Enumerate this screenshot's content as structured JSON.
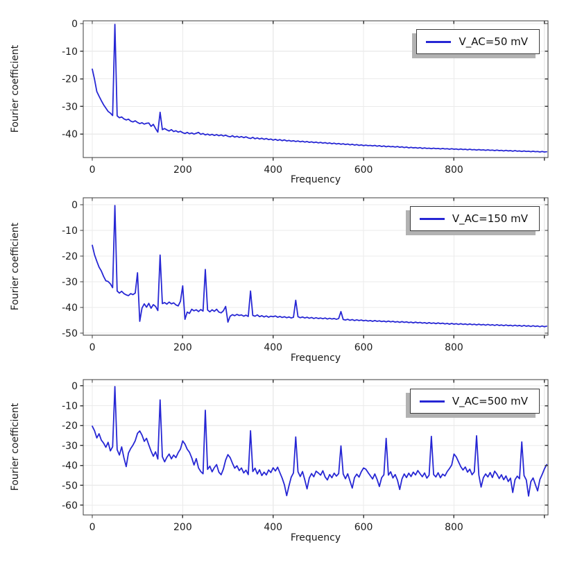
{
  "figure": {
    "background": "#ffffff",
    "grid_color": "#ebebeb",
    "frame_color": "#3b3b3b",
    "tick_color": "#3b3b3b",
    "text_color": "#1a1a1a",
    "legend_border_color": "#3a3a3a",
    "legend_shadow_color": "#b2b2b2",
    "accent_blue": "#2626d4"
  },
  "chart_data": [
    {
      "type": "line",
      "title": "",
      "xlabel": "Frequency",
      "ylabel": "Fourier coefficient",
      "grid": true,
      "legend_position": "top-right",
      "xlim": [
        -20,
        1008
      ],
      "ylim": [
        -48.5,
        1.0
      ],
      "xticks": [
        0,
        200,
        400,
        600,
        800,
        1000
      ],
      "xtick_labels": [
        "0",
        "200",
        "400",
        "600",
        "800",
        ""
      ],
      "yticks": [
        0,
        -10,
        -20,
        -30,
        -40
      ],
      "series": [
        {
          "name": "V_AC=50 mV",
          "color": "#2626d4",
          "x0": 0,
          "dx": 5,
          "y": [
            -16.5,
            -20.2,
            -24.6,
            -26.3,
            -27.9,
            -29.4,
            -30.6,
            -31.8,
            -32.4,
            -33.3,
            -0.3,
            -33.4,
            -34.1,
            -33.8,
            -34.5,
            -34.9,
            -34.6,
            -35.3,
            -35.6,
            -35.2,
            -35.8,
            -36.2,
            -35.9,
            -36.4,
            -36.1,
            -36.0,
            -37.2,
            -36.5,
            -38.0,
            -39.3,
            -32.1,
            -38.4,
            -38.0,
            -38.5,
            -38.9,
            -38.4,
            -39.1,
            -38.8,
            -39.3,
            -39.0,
            -39.5,
            -39.8,
            -39.4,
            -39.9,
            -39.6,
            -40.0,
            -39.7,
            -39.4,
            -40.1,
            -39.8,
            -40.3,
            -40.0,
            -40.4,
            -40.1,
            -40.5,
            -40.2,
            -40.6,
            -40.3,
            -40.7,
            -40.4,
            -40.8,
            -41.0,
            -40.6,
            -41.1,
            -40.8,
            -41.2,
            -40.9,
            -41.3,
            -41.0,
            -41.4,
            -41.6,
            -41.2,
            -41.7,
            -41.4,
            -41.8,
            -41.5,
            -41.9,
            -41.6,
            -42.0,
            -41.8,
            -42.2,
            -41.9,
            -42.3,
            -42.0,
            -42.4,
            -42.1,
            -42.5,
            -42.3,
            -42.6,
            -42.4,
            -42.7,
            -42.5,
            -42.8,
            -42.6,
            -42.9,
            -42.7,
            -43.0,
            -42.8,
            -43.1,
            -42.9,
            -43.2,
            -43.0,
            -43.3,
            -43.1,
            -43.4,
            -43.2,
            -43.5,
            -43.3,
            -43.6,
            -43.4,
            -43.7,
            -43.5,
            -43.8,
            -43.6,
            -43.9,
            -43.7,
            -44.0,
            -43.8,
            -44.1,
            -43.9,
            -44.2,
            -44.0,
            -44.2,
            -44.1,
            -44.3,
            -44.1,
            -44.4,
            -44.2,
            -44.5,
            -44.3,
            -44.6,
            -44.4,
            -44.6,
            -44.5,
            -44.7,
            -44.5,
            -44.8,
            -44.6,
            -44.9,
            -44.7,
            -45.0,
            -44.8,
            -45.0,
            -44.9,
            -45.1,
            -44.9,
            -45.2,
            -45.0,
            -45.2,
            -45.1,
            -45.3,
            -45.1,
            -45.3,
            -45.2,
            -45.4,
            -45.2,
            -45.4,
            -45.3,
            -45.5,
            -45.3,
            -45.5,
            -45.4,
            -45.6,
            -45.4,
            -45.6,
            -45.5,
            -45.7,
            -45.5,
            -45.7,
            -45.6,
            -45.8,
            -45.6,
            -45.8,
            -45.7,
            -45.9,
            -45.7,
            -45.9,
            -45.8,
            -46.0,
            -45.8,
            -46.0,
            -45.9,
            -46.1,
            -45.9,
            -46.1,
            -46.0,
            -46.2,
            -46.0,
            -46.2,
            -46.1,
            -46.3,
            -46.1,
            -46.3,
            -46.2,
            -46.4,
            -46.2,
            -46.4,
            -46.3,
            -46.5,
            -46.3,
            -46.5,
            -46.4
          ]
        }
      ]
    },
    {
      "type": "line",
      "title": "",
      "xlabel": "Frequency",
      "ylabel": "Fourier coefficient",
      "grid": true,
      "legend_position": "top-right",
      "xlim": [
        -20,
        1008
      ],
      "ylim": [
        -50.8,
        2.7
      ],
      "xticks": [
        0,
        200,
        400,
        600,
        800,
        1000
      ],
      "xtick_labels": [
        "0",
        "200",
        "400",
        "600",
        "800",
        ""
      ],
      "yticks": [
        0,
        -10,
        -20,
        -30,
        -40,
        -50
      ],
      "series": [
        {
          "name": "V_AC=150 mV",
          "color": "#2626d4",
          "x0": 0,
          "dx": 5,
          "y": [
            -15.8,
            -19.5,
            -22.0,
            -24.3,
            -25.8,
            -27.9,
            -29.6,
            -29.9,
            -30.8,
            -32.3,
            -0.3,
            -33.6,
            -34.4,
            -33.7,
            -34.6,
            -35.1,
            -35.4,
            -34.6,
            -35.0,
            -34.4,
            -26.5,
            -45.4,
            -40.2,
            -38.6,
            -39.9,
            -38.4,
            -40.3,
            -38.9,
            -39.6,
            -41.2,
            -19.6,
            -38.5,
            -38.1,
            -38.7,
            -37.9,
            -38.6,
            -38.2,
            -39.0,
            -39.4,
            -37.6,
            -31.6,
            -44.6,
            -41.8,
            -42.3,
            -40.7,
            -41.3,
            -40.9,
            -41.6,
            -40.8,
            -41.4,
            -25.2,
            -41.0,
            -41.7,
            -40.9,
            -41.5,
            -40.7,
            -41.8,
            -42.1,
            -41.3,
            -39.6,
            -45.7,
            -43.4,
            -42.8,
            -43.2,
            -42.7,
            -43.1,
            -42.9,
            -43.4,
            -43.0,
            -43.5,
            -33.6,
            -43.1,
            -43.4,
            -42.9,
            -43.6,
            -43.2,
            -43.7,
            -43.3,
            -43.8,
            -43.4,
            -43.6,
            -43.3,
            -43.8,
            -43.5,
            -43.9,
            -43.6,
            -44.0,
            -43.7,
            -44.1,
            -43.8,
            -37.2,
            -43.6,
            -44.0,
            -43.7,
            -44.1,
            -43.8,
            -44.2,
            -43.9,
            -44.3,
            -44.0,
            -44.3,
            -44.1,
            -44.4,
            -44.1,
            -44.5,
            -44.2,
            -44.5,
            -44.3,
            -44.6,
            -44.3,
            -41.6,
            -44.7,
            -44.9,
            -44.6,
            -45.0,
            -44.7,
            -45.1,
            -44.8,
            -45.1,
            -44.9,
            -45.2,
            -45.0,
            -45.3,
            -45.1,
            -45.4,
            -45.1,
            -45.4,
            -45.2,
            -45.5,
            -45.3,
            -45.6,
            -45.3,
            -45.6,
            -45.4,
            -45.7,
            -45.5,
            -45.8,
            -45.5,
            -45.8,
            -45.6,
            -45.9,
            -45.7,
            -46.0,
            -45.7,
            -46.0,
            -45.8,
            -46.1,
            -45.9,
            -46.2,
            -45.9,
            -46.2,
            -46.0,
            -46.3,
            -46.0,
            -46.3,
            -46.1,
            -46.4,
            -46.2,
            -46.5,
            -46.2,
            -46.5,
            -46.3,
            -46.6,
            -46.3,
            -46.6,
            -46.4,
            -46.7,
            -46.4,
            -46.7,
            -46.5,
            -46.8,
            -46.5,
            -46.8,
            -46.6,
            -46.9,
            -46.6,
            -46.9,
            -46.7,
            -47.0,
            -46.7,
            -47.0,
            -46.8,
            -47.1,
            -46.8,
            -47.1,
            -46.9,
            -47.2,
            -46.9,
            -47.2,
            -47.0,
            -47.3,
            -47.0,
            -47.3,
            -47.1,
            -47.4,
            -47.1,
            -47.4,
            -47.2,
            -47.5,
            -47.2,
            -47.5,
            -47.3
          ]
        }
      ]
    },
    {
      "type": "line",
      "title": "",
      "xlabel": "Frequency",
      "ylabel": "Fourier coefficient",
      "grid": true,
      "legend_position": "top-right",
      "xlim": [
        -20,
        1008
      ],
      "ylim": [
        -64.9,
        3.1
      ],
      "xticks": [
        0,
        200,
        400,
        600,
        800,
        1000
      ],
      "xtick_labels": [
        "0",
        "200",
        "400",
        "600",
        "800",
        ""
      ],
      "yticks": [
        0,
        -10,
        -20,
        -30,
        -40,
        -50,
        -60
      ],
      "series": [
        {
          "name": "V_AC=500 mV",
          "color": "#2626d4",
          "x0": 0,
          "dx": 5,
          "y": [
            -20.3,
            -22.6,
            -26.2,
            -24.1,
            -27.3,
            -28.8,
            -30.9,
            -28.4,
            -32.7,
            -30.6,
            -0.4,
            -32.1,
            -34.8,
            -30.7,
            -36.2,
            -40.6,
            -33.8,
            -31.5,
            -29.8,
            -27.6,
            -23.9,
            -22.7,
            -24.8,
            -27.9,
            -26.4,
            -29.7,
            -32.8,
            -35.4,
            -33.2,
            -36.8,
            -7.1,
            -35.6,
            -38.2,
            -35.9,
            -34.3,
            -36.7,
            -34.8,
            -36.1,
            -33.6,
            -31.8,
            -27.7,
            -29.3,
            -31.9,
            -33.4,
            -36.2,
            -39.8,
            -36.6,
            -41.3,
            -43.1,
            -44.2,
            -12.3,
            -42.0,
            -40.4,
            -43.2,
            -41.1,
            -39.6,
            -43.4,
            -44.7,
            -41.8,
            -37.3,
            -34.6,
            -36.1,
            -38.9,
            -41.4,
            -40.2,
            -42.6,
            -41.3,
            -43.8,
            -42.4,
            -44.6,
            -22.6,
            -43.1,
            -41.4,
            -44.3,
            -42.2,
            -45.1,
            -43.4,
            -44.8,
            -42.3,
            -43.6,
            -41.2,
            -42.8,
            -40.9,
            -43.7,
            -46.4,
            -49.8,
            -55.2,
            -50.3,
            -45.9,
            -43.8,
            -25.7,
            -43.2,
            -45.6,
            -43.1,
            -47.2,
            -51.8,
            -46.3,
            -44.1,
            -45.7,
            -42.9,
            -43.8,
            -44.9,
            -42.7,
            -45.8,
            -47.3,
            -44.6,
            -46.2,
            -43.9,
            -45.4,
            -44.1,
            -30.2,
            -44.3,
            -46.7,
            -44.2,
            -47.8,
            -51.4,
            -46.1,
            -44.4,
            -45.9,
            -43.2,
            -41.3,
            -41.9,
            -43.6,
            -45.2,
            -46.8,
            -44.3,
            -47.1,
            -50.6,
            -46.2,
            -44.7,
            -26.4,
            -44.9,
            -43.2,
            -46.3,
            -44.6,
            -47.4,
            -52.1,
            -46.8,
            -44.3,
            -46.1,
            -43.9,
            -45.6,
            -43.4,
            -44.8,
            -42.6,
            -44.2,
            -45.7,
            -43.8,
            -46.4,
            -44.9,
            -25.4,
            -44.6,
            -45.8,
            -43.7,
            -46.2,
            -44.4,
            -45.3,
            -43.1,
            -41.6,
            -39.8,
            -34.3,
            -35.7,
            -38.2,
            -40.6,
            -42.3,
            -40.8,
            -43.4,
            -41.9,
            -44.7,
            -43.2,
            -25.1,
            -44.8,
            -50.9,
            -46.2,
            -44.3,
            -45.8,
            -43.6,
            -46.1,
            -42.9,
            -44.4,
            -46.6,
            -44.7,
            -47.2,
            -45.3,
            -48.1,
            -46.4,
            -53.6,
            -47.2,
            -45.4,
            -46.7,
            -28.2,
            -45.1,
            -47.3,
            -55.4,
            -48.2,
            -46.3,
            -49.6,
            -52.8,
            -47.1,
            -44.6,
            -41.8,
            -39.6
          ]
        }
      ]
    }
  ]
}
